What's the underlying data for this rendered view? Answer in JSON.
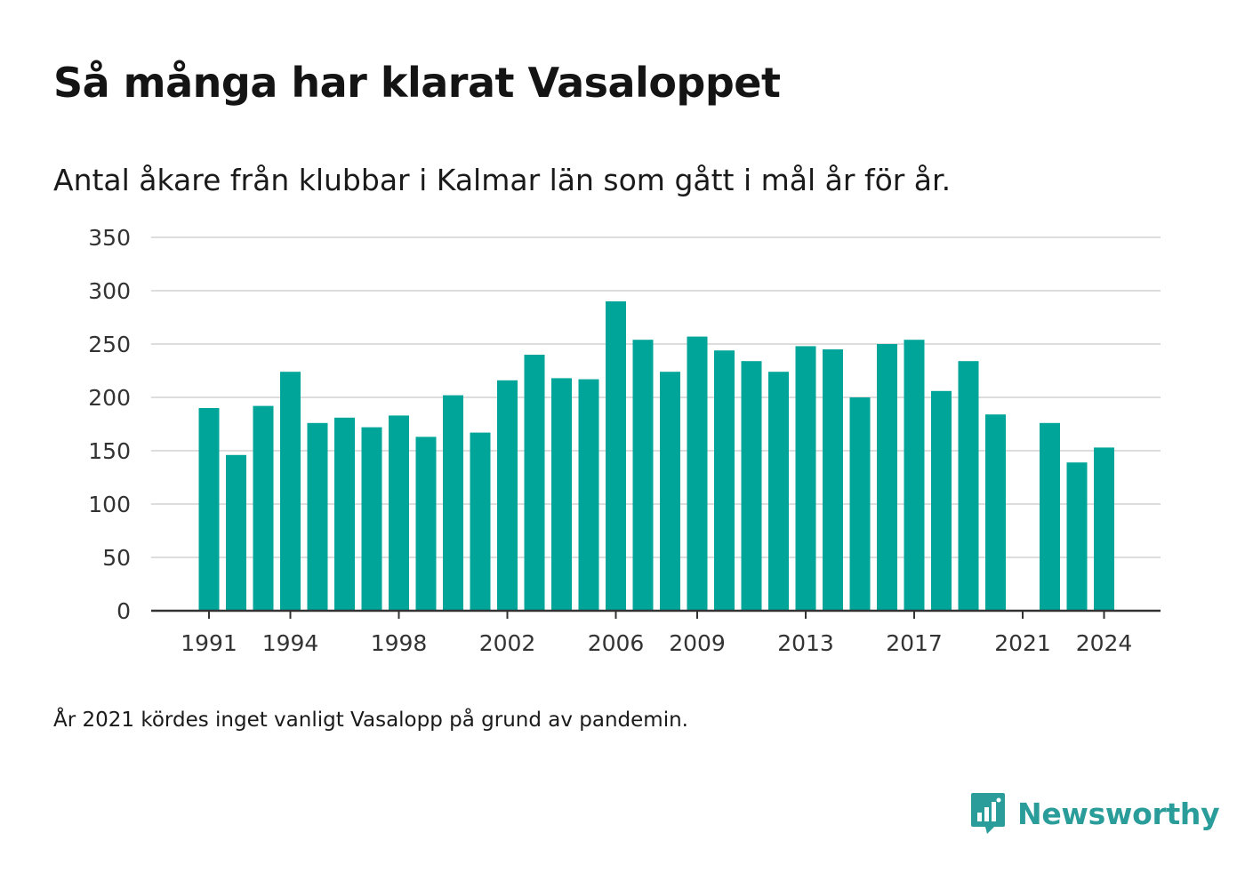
{
  "title": "Så många har klarat Vasaloppet",
  "subtitle": "Antal åkare från klubbar i Kalmar län som gått i mål år för år.",
  "note": "År 2021 kördes inget vanligt Vasalopp på grund av pandemin.",
  "brand": {
    "name": "Newsworthy",
    "color": "#2a9d9a",
    "icon": "bar-chart-speech-bubble-icon"
  },
  "colors": {
    "bar": "#00a59a",
    "grid": "#dddddd",
    "axis": "#333333"
  },
  "chart_data": {
    "type": "bar",
    "categories": [
      "1991",
      "1992",
      "1993",
      "1994",
      "1995",
      "1996",
      "1997",
      "1998",
      "1999",
      "2000",
      "2001",
      "2002",
      "2003",
      "2004",
      "2005",
      "2006",
      "2007",
      "2008",
      "2009",
      "2010",
      "2011",
      "2012",
      "2013",
      "2014",
      "2015",
      "2016",
      "2017",
      "2018",
      "2019",
      "2020",
      "2021",
      "2022",
      "2023",
      "2024"
    ],
    "values": [
      190,
      146,
      192,
      224,
      176,
      181,
      172,
      183,
      163,
      202,
      167,
      216,
      240,
      218,
      217,
      290,
      254,
      224,
      257,
      244,
      234,
      224,
      248,
      245,
      200,
      250,
      254,
      206,
      234,
      184,
      null,
      176,
      139,
      153
    ],
    "ylim": [
      0,
      350
    ],
    "yticks": [
      0,
      50,
      100,
      150,
      200,
      250,
      300,
      350
    ],
    "xticks": [
      "1991",
      "1994",
      "1998",
      "2002",
      "2006",
      "2009",
      "2013",
      "2017",
      "2021",
      "2024"
    ],
    "grid": true,
    "xlabel": "",
    "ylabel": ""
  }
}
